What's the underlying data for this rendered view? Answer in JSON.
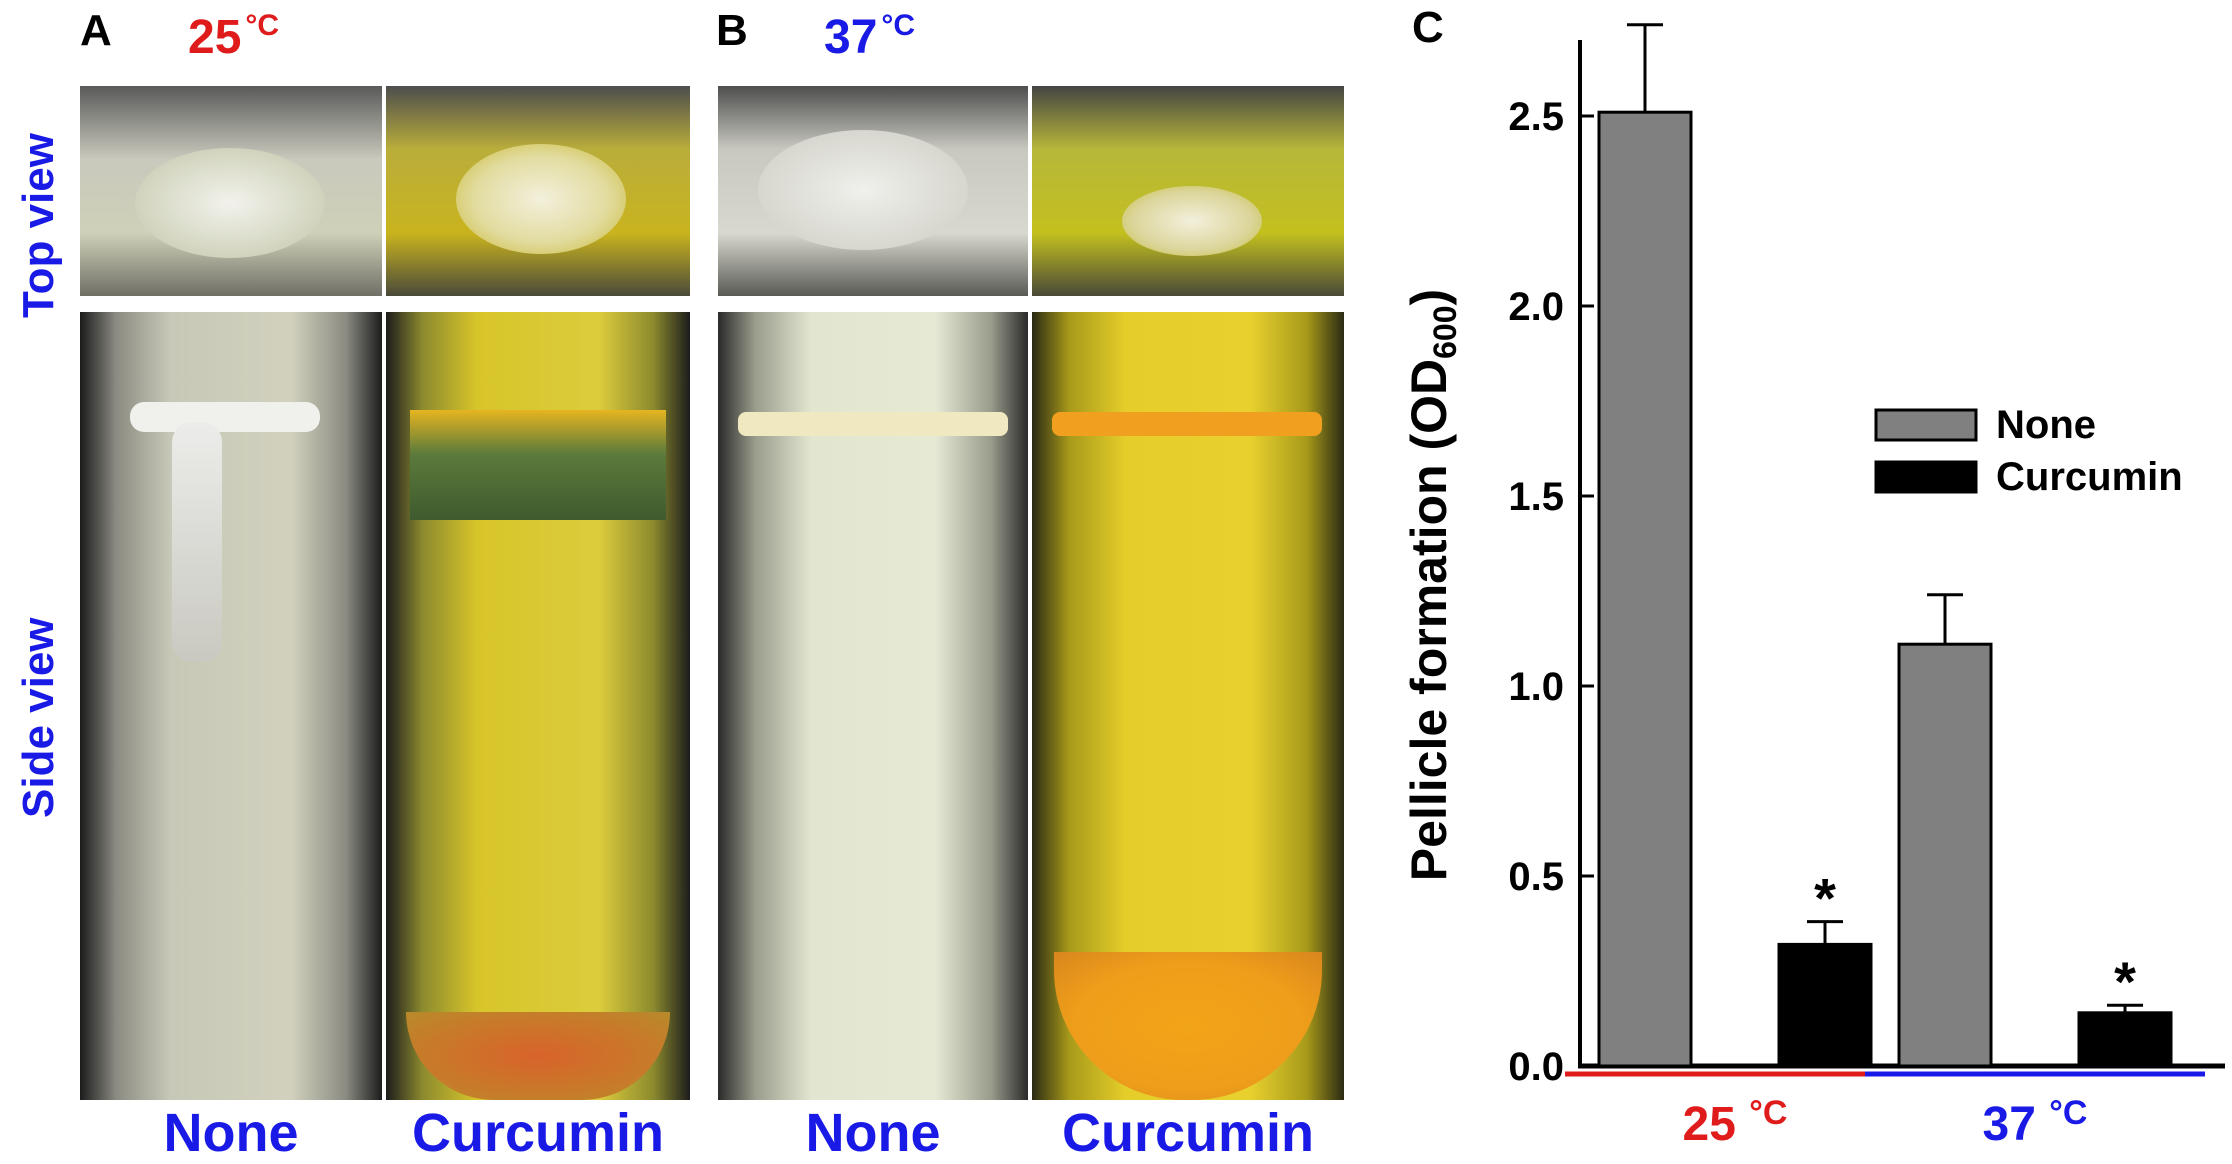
{
  "panels": {
    "a": {
      "letter": "A",
      "temp": "25",
      "temp_unit": "°C",
      "temp_color": "#e01b1b",
      "samples": [
        "None",
        "Curcumin"
      ]
    },
    "b": {
      "letter": "B",
      "temp": "37",
      "temp_unit": "°C",
      "temp_color": "#1a1ae6",
      "samples": [
        "None",
        "Curcumin"
      ]
    },
    "c": {
      "letter": "C"
    }
  },
  "view_labels": {
    "top": "Top view",
    "side": "Side view"
  },
  "colors": {
    "none_bar": "#808080",
    "curcumin_bar": "#000000",
    "red_group": "#e01b1b",
    "blue_group": "#1a1ae6",
    "label_blue": "#1a1ae6"
  },
  "chart_data": {
    "type": "bar",
    "title": "",
    "ylabel": "Pellicle formation (OD600)",
    "ylabel_main": "Pellicle formation (OD",
    "ylabel_sub": "600",
    "ylabel_close": ")",
    "ylim": [
      0,
      2.7
    ],
    "yticks": [
      "0.0",
      "0.5",
      "1.0",
      "1.5",
      "2.0",
      "2.5"
    ],
    "categories": [
      {
        "temp": "25",
        "unit": "°C",
        "color": "#e01b1b"
      },
      {
        "temp": "37",
        "unit": "°C",
        "color": "#1a1ae6"
      }
    ],
    "series": [
      {
        "name": "None",
        "color": "#808080",
        "values": [
          2.51,
          1.11
        ],
        "errors": [
          0.23,
          0.13
        ],
        "sig": [
          "",
          ""
        ]
      },
      {
        "name": "Curcumin",
        "color": "#000000",
        "values": [
          0.32,
          0.14
        ],
        "errors": [
          0.06,
          0.02
        ],
        "sig": [
          "*",
          "*"
        ]
      }
    ],
    "legend_position": "middle-right",
    "grid": false
  }
}
